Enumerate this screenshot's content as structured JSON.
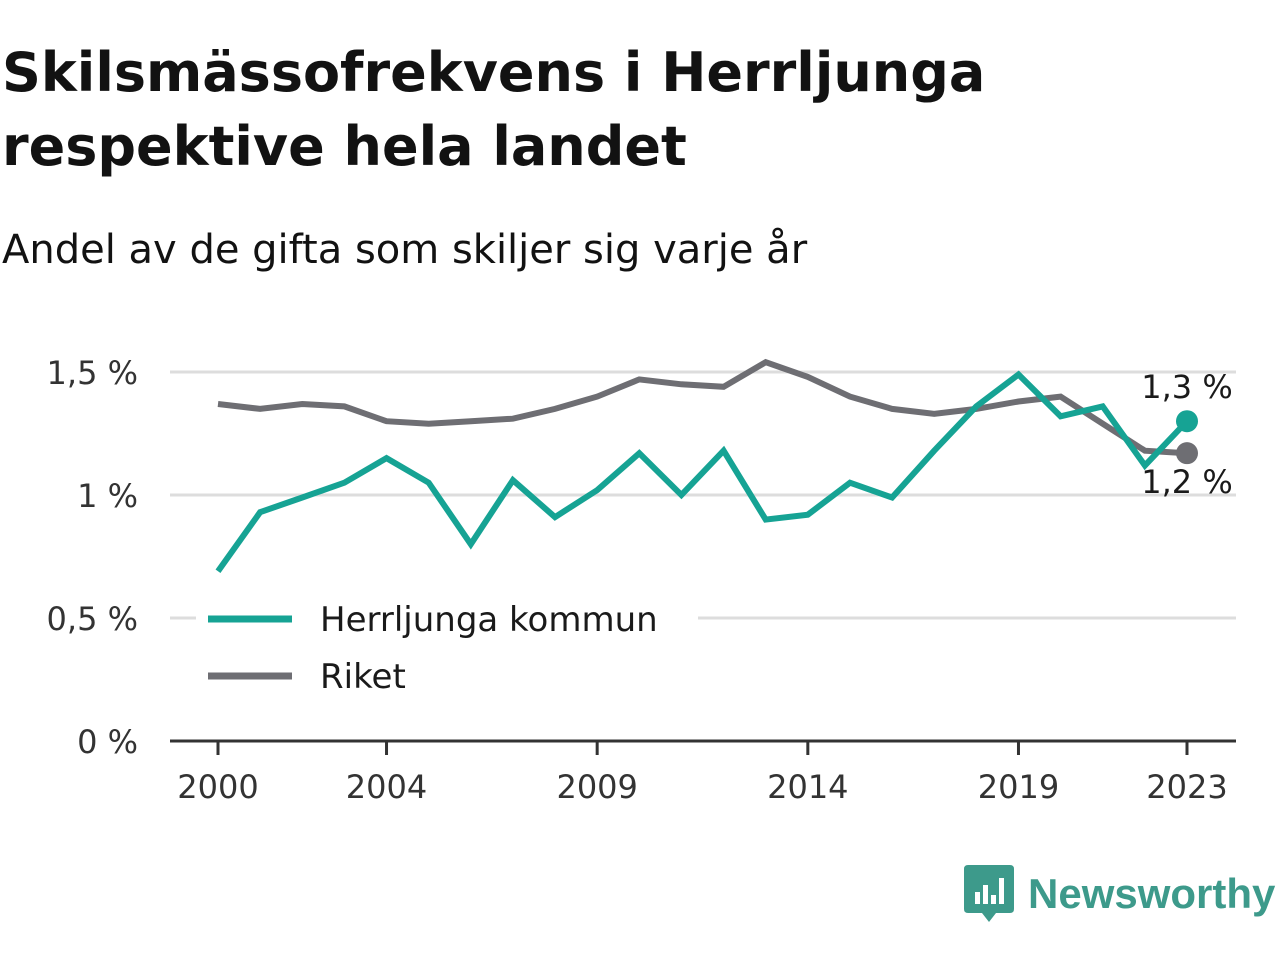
{
  "colors": {
    "herrljunga": "#16a394",
    "riket": "#6e6e73",
    "grid": "#dddddd",
    "axis": "#333333",
    "brand": "#3d9a8b"
  },
  "brand": {
    "name": "Newsworthy",
    "icon": "bar-chart-badge-icon"
  },
  "chart_data": {
    "type": "line",
    "title": "Skilsmässofrekvens i Herrljunga respektive hela landet",
    "subtitle": "Andel av de gifta som skiljer sig varje år",
    "x": [
      2000,
      2001,
      2002,
      2003,
      2004,
      2005,
      2006,
      2007,
      2008,
      2009,
      2010,
      2011,
      2012,
      2013,
      2014,
      2015,
      2016,
      2017,
      2018,
      2019,
      2020,
      2021,
      2022,
      2023
    ],
    "x_ticks": [
      {
        "value": 2000,
        "label": "2000"
      },
      {
        "value": 2004,
        "label": "2004"
      },
      {
        "value": 2009,
        "label": "2009"
      },
      {
        "value": 2014,
        "label": "2014"
      },
      {
        "value": 2019,
        "label": "2019"
      },
      {
        "value": 2023,
        "label": "2023"
      }
    ],
    "y_ticks": [
      {
        "value": 0,
        "label": "0 %"
      },
      {
        "value": 0.5,
        "label": "0,5 %"
      },
      {
        "value": 1,
        "label": "1 %"
      },
      {
        "value": 1.5,
        "label": "1,5 %"
      }
    ],
    "ylim": [
      0,
      1.5
    ],
    "grid": true,
    "legend_position": "bottom-left",
    "series": [
      {
        "name": "Herrljunga kommun",
        "color_key": "herrljunga",
        "values": [
          0.69,
          0.93,
          0.99,
          1.05,
          1.15,
          1.05,
          0.8,
          1.06,
          0.91,
          1.02,
          1.17,
          1.0,
          1.18,
          0.9,
          0.92,
          1.05,
          0.99,
          1.18,
          1.36,
          1.49,
          1.32,
          1.36,
          1.12,
          1.3
        ],
        "end_label": "1,3 %"
      },
      {
        "name": "Riket",
        "color_key": "riket",
        "values": [
          1.37,
          1.35,
          1.37,
          1.36,
          1.3,
          1.29,
          1.3,
          1.31,
          1.35,
          1.4,
          1.47,
          1.45,
          1.44,
          1.54,
          1.48,
          1.4,
          1.35,
          1.33,
          1.35,
          1.38,
          1.4,
          1.29,
          1.18,
          1.17
        ],
        "end_label": "1,2 %"
      }
    ]
  }
}
